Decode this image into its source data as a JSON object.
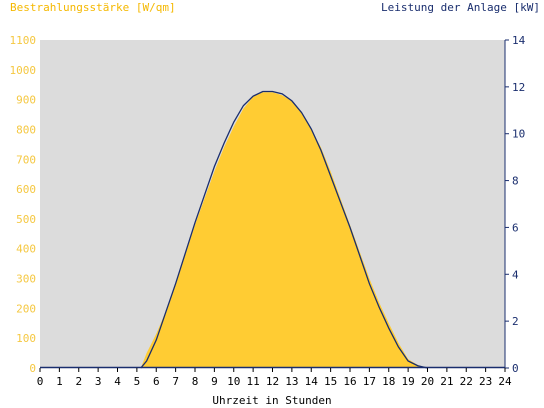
{
  "chart_data": {
    "type": "area",
    "ylabel_left": "Bestrahlungsstärke [W/qm]",
    "ylabel_right": "Leistung der Anlage [kW]",
    "xlabel": "Uhrzeit in Stunden",
    "xlim": [
      0,
      24
    ],
    "ylim_left": [
      0,
      1100
    ],
    "ylim_right": [
      0,
      14
    ],
    "x_ticks": [
      "0",
      "1",
      "2",
      "3",
      "4",
      "5",
      "6",
      "7",
      "8",
      "9",
      "10",
      "11",
      "12",
      "13",
      "14",
      "15",
      "16",
      "17",
      "18",
      "19",
      "20",
      "21",
      "22",
      "23",
      "24"
    ],
    "y_ticks_left": [
      "0",
      "100",
      "200",
      "300",
      "400",
      "500",
      "600",
      "700",
      "800",
      "900",
      "1000",
      "1100"
    ],
    "y_ticks_right": [
      "0",
      "2",
      "4",
      "6",
      "8",
      "10",
      "12",
      "14"
    ],
    "colors": {
      "irradiance_fill": "#ffcc33",
      "power_line": "#1a2e6e",
      "plot_background": "#dcdcdc",
      "left_axis_text": "#f5c842",
      "right_axis_text": "#1a2e6e"
    },
    "series": [
      {
        "kind": "area",
        "axis": "left",
        "x": [
          5.2,
          5.5,
          6.0,
          6.5,
          7.0,
          7.5,
          8.0,
          8.5,
          9.0,
          9.5,
          10.0,
          10.5,
          11.0,
          11.5,
          12.0,
          12.5,
          13.0,
          13.5,
          14.0,
          14.5,
          15.0,
          15.5,
          16.0,
          16.5,
          17.0,
          17.5,
          18.0,
          18.5,
          19.0,
          19.5,
          20.0
        ],
        "values": [
          0,
          50,
          115,
          190,
          280,
          380,
          480,
          570,
          660,
          740,
          810,
          870,
          910,
          925,
          925,
          915,
          895,
          860,
          800,
          740,
          660,
          570,
          480,
          390,
          300,
          220,
          150,
          85,
          30,
          10,
          0
        ]
      },
      {
        "kind": "line",
        "axis": "right",
        "x": [
          5.2,
          5.5,
          6.0,
          6.5,
          7.0,
          7.5,
          8.0,
          8.5,
          9.0,
          9.5,
          10.0,
          10.5,
          11.0,
          11.5,
          12.0,
          12.5,
          13.0,
          13.5,
          14.0,
          14.5,
          15.0,
          15.5,
          16.0,
          16.5,
          17.0,
          17.5,
          18.0,
          18.5,
          19.0,
          19.5,
          20.0
        ],
        "values": [
          0,
          0.3,
          1.2,
          2.4,
          3.6,
          4.9,
          6.2,
          7.4,
          8.6,
          9.6,
          10.5,
          11.2,
          11.6,
          11.8,
          11.8,
          11.7,
          11.4,
          10.9,
          10.2,
          9.3,
          8.2,
          7.1,
          6.0,
          4.8,
          3.6,
          2.6,
          1.7,
          0.9,
          0.3,
          0.1,
          0
        ]
      }
    ]
  }
}
